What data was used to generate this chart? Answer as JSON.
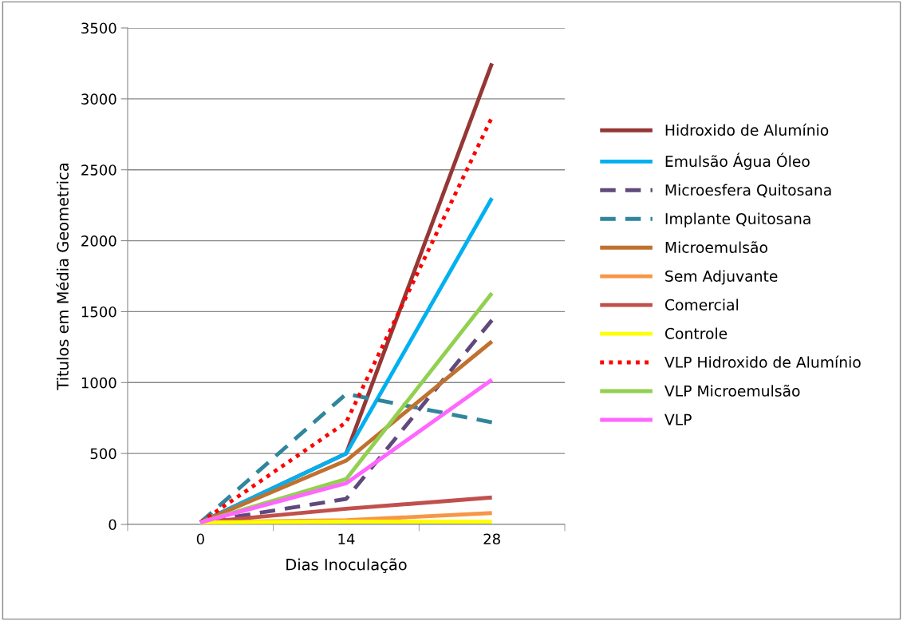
{
  "chart_data": {
    "type": "line",
    "xlabel": "Dias Inoculação",
    "ylabel": "Titulos em Média Geometrica",
    "categories": [
      "0",
      "14",
      "28"
    ],
    "ylim": [
      0,
      3500
    ],
    "yticks": [
      0,
      500,
      1000,
      1500,
      2000,
      2500,
      3000,
      3500
    ],
    "grid": "y",
    "legend": "right",
    "marker": "none",
    "series": [
      {
        "name": "Hidroxido de Alumínio",
        "color": "#953735",
        "line_style": "solid",
        "values": [
          15,
          500,
          3250
        ]
      },
      {
        "name": "Emulsão Água Óleo",
        "color": "#00b0f0",
        "line_style": "solid",
        "values": [
          15,
          500,
          2300
        ]
      },
      {
        "name": "Microesfera Quitosana",
        "color": "#604a7b",
        "line_style": "dashed",
        "values": [
          15,
          180,
          1440
        ]
      },
      {
        "name": "Implante Quitosana",
        "color": "#31859c",
        "line_style": "dashed",
        "values": [
          15,
          920,
          720
        ]
      },
      {
        "name": "Microemulsão",
        "color": "#c0712f",
        "line_style": "solid",
        "values": [
          15,
          450,
          1290
        ]
      },
      {
        "name": "Sem Adjuvante",
        "color": "#f79646",
        "line_style": "solid",
        "values": [
          15,
          30,
          80
        ]
      },
      {
        "name": "Comercial",
        "color": "#c0504d",
        "line_style": "solid",
        "values": [
          15,
          110,
          190
        ]
      },
      {
        "name": "Controle",
        "color": "#ffff00",
        "line_style": "solid",
        "values": [
          15,
          20,
          20
        ]
      },
      {
        "name": "VLP Hidroxido de Alumínio",
        "color": "#ff0000",
        "line_style": "dotted",
        "values": [
          15,
          720,
          2870
        ]
      },
      {
        "name": "VLP Microemulsão",
        "color": "#92d050",
        "line_style": "solid",
        "values": [
          15,
          320,
          1630
        ]
      },
      {
        "name": "VLP",
        "color": "#ff66ff",
        "line_style": "solid",
        "values": [
          15,
          290,
          1020
        ]
      }
    ]
  }
}
